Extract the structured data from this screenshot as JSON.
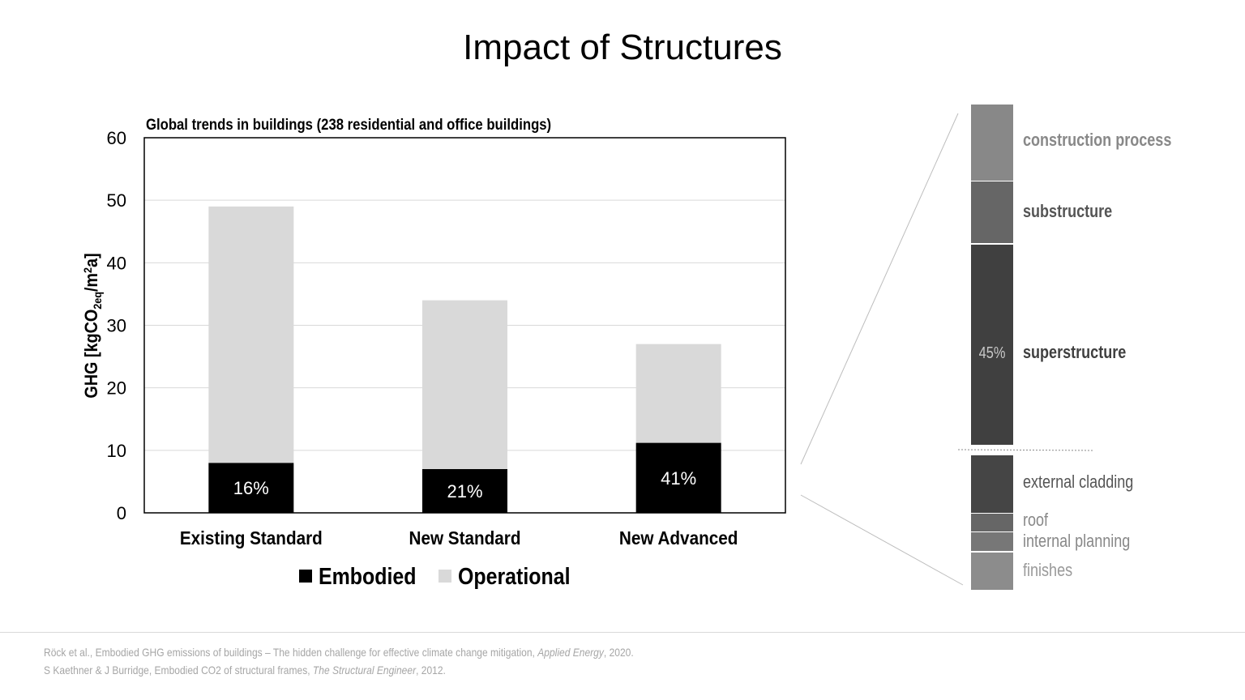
{
  "title": "Impact of Structures",
  "chart_data": [
    {
      "type": "bar",
      "stacked": true,
      "title": "Global trends in buildings (238 residential and office buildings)",
      "ylabel": "GHG [kgCO2eq/m2a]",
      "ylim": [
        0,
        60
      ],
      "yticks": [
        0,
        10,
        20,
        30,
        40,
        50,
        60
      ],
      "grid": true,
      "legend_position": "bottom",
      "categories": [
        "Existing Standard",
        "New Standard",
        "New Advanced"
      ],
      "series": [
        {
          "name": "Embodied",
          "color": "#000000",
          "values": [
            8,
            7,
            11.2
          ]
        },
        {
          "name": "Operational",
          "color": "#d9d9d9",
          "values": [
            41,
            27,
            15.8
          ]
        }
      ],
      "totals": [
        49,
        34,
        27
      ],
      "data_labels": [
        "16%",
        "21%",
        "41%"
      ]
    },
    {
      "type": "bar",
      "stacked": true,
      "segments": [
        {
          "label": "construction process",
          "color": "#888888",
          "label_color": "#888888",
          "weight": "bold"
        },
        {
          "label": "substructure",
          "color": "#666666",
          "label_color": "#555555",
          "weight": "bold"
        },
        {
          "label": "superstructure",
          "color": "#404040",
          "label_color": "#404040",
          "weight": "bold",
          "value_label": "45%"
        },
        {
          "label": "external cladding",
          "color": "#454545",
          "label_color": "#555555",
          "weight": "normal"
        },
        {
          "label": "roof",
          "color": "#666666",
          "label_color": "#888888",
          "weight": "normal"
        },
        {
          "label": "internal planning",
          "color": "#777777",
          "label_color": "#888888",
          "weight": "normal"
        },
        {
          "label": "finishes",
          "color": "#8c8c8c",
          "label_color": "#999999",
          "weight": "normal"
        }
      ]
    }
  ],
  "references": [
    {
      "text": "Röck et al., Embodied GHG emissions of buildings – The hidden challenge for effective climate change mitigation, ",
      "journal": "Applied Energy",
      "year": ", 2020."
    },
    {
      "text": "S Kaethner & J Burridge, Embodied CO2 of structural frames, ",
      "journal": "The Structural Engineer",
      "year": ", 2012."
    }
  ]
}
